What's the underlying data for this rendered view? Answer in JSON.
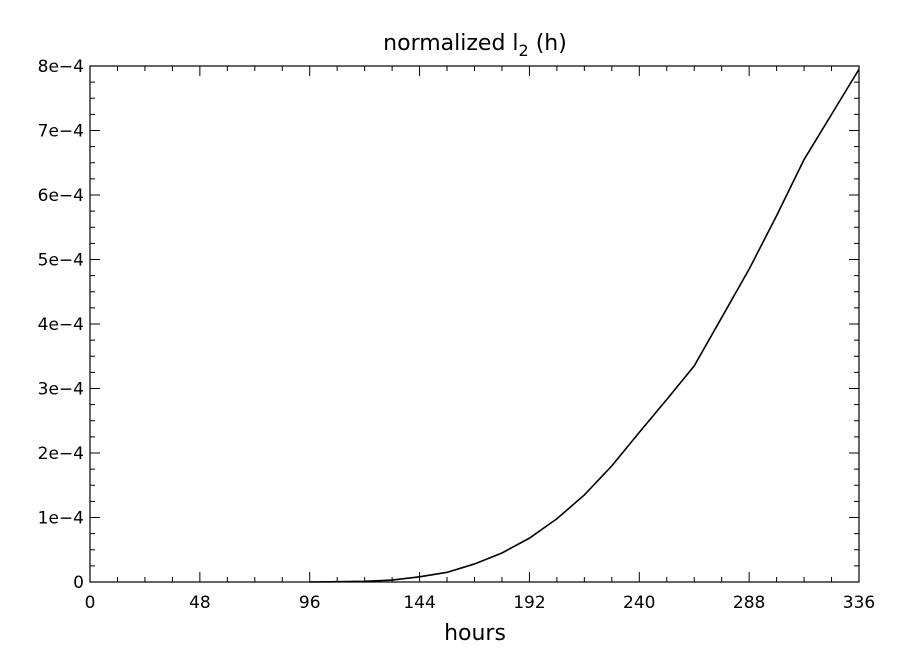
{
  "chart_data": {
    "type": "line",
    "title": {
      "main": "normalized l",
      "subscript": "2",
      "suffix": " (h)"
    },
    "xlabel": "hours",
    "ylabel": "",
    "xlim": [
      0,
      336
    ],
    "ylim": [
      0,
      0.0008
    ],
    "x_ticks": [
      0,
      48,
      96,
      144,
      192,
      240,
      288,
      336
    ],
    "x_tick_labels": [
      "0",
      "48",
      "96",
      "144",
      "192",
      "240",
      "288",
      "336"
    ],
    "y_ticks": [
      0,
      0.0001,
      0.0002,
      0.0003,
      0.0004,
      0.0005,
      0.0006,
      0.0007,
      0.0008
    ],
    "y_tick_labels": [
      "0",
      "1e−4",
      "2e−4",
      "3e−4",
      "4e−4",
      "5e−4",
      "6e−4",
      "7e−4",
      "8e−4"
    ],
    "grid": false,
    "line_color": "#000000",
    "series": [
      {
        "x": [
          96,
          108,
          120,
          132,
          144,
          156,
          168,
          180,
          192,
          204,
          216,
          228,
          240,
          252,
          264,
          276,
          288,
          300,
          312,
          324,
          336
        ],
        "values": [
          0.0,
          5e-07,
          1e-06,
          3e-06,
          8e-06,
          1.5e-05,
          2.8e-05,
          4.5e-05,
          6.8e-05,
          9.8e-05,
          0.000135,
          0.00018,
          0.000232,
          0.000283,
          0.000335,
          0.00041,
          0.000485,
          0.000568,
          0.000655,
          0.000725,
          0.000795
        ]
      }
    ]
  }
}
